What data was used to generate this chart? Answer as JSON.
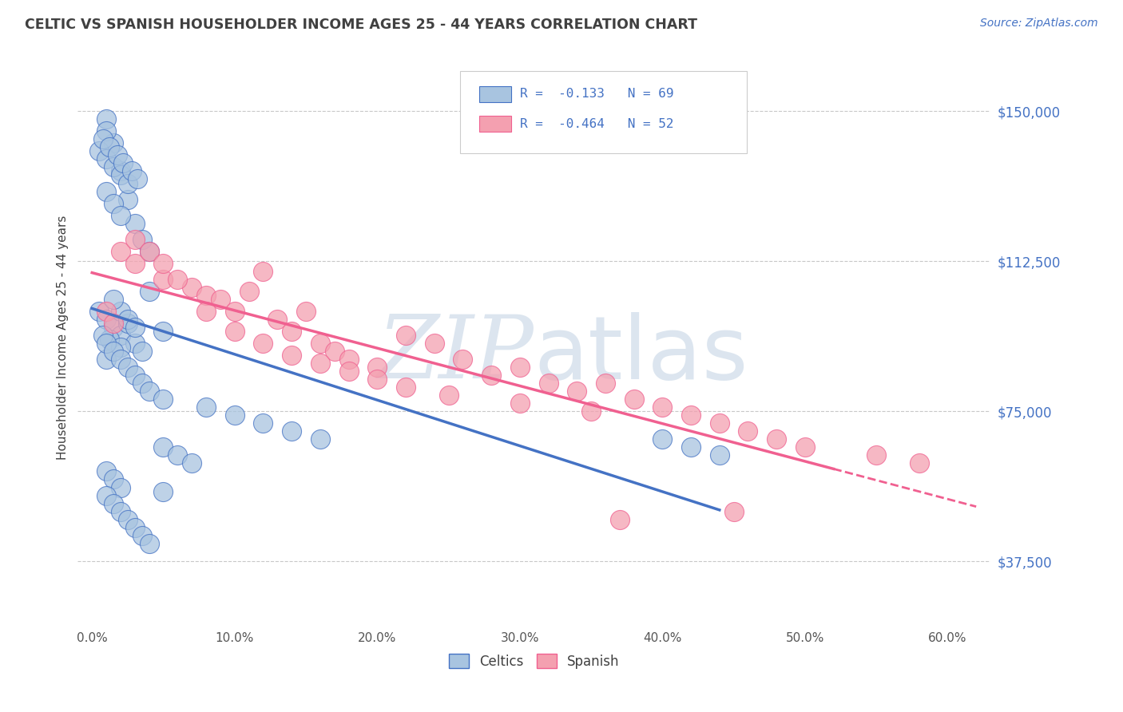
{
  "title": "CELTIC VS SPANISH HOUSEHOLDER INCOME AGES 25 - 44 YEARS CORRELATION CHART",
  "source": "Source: ZipAtlas.com",
  "xlabel_ticks": [
    "0.0%",
    "10.0%",
    "20.0%",
    "30.0%",
    "40.0%",
    "50.0%",
    "60.0%"
  ],
  "xlabel_vals": [
    0,
    10,
    20,
    30,
    40,
    50,
    60
  ],
  "ylabel_ticks": [
    "$37,500",
    "$75,000",
    "$112,500",
    "$150,000"
  ],
  "ylabel_vals": [
    37500,
    75000,
    112500,
    150000
  ],
  "ylim": [
    22000,
    165000
  ],
  "xlim": [
    -1,
    63
  ],
  "legend_r1": "R =  -0.133   N = 69",
  "legend_r2": "R =  -0.464   N = 52",
  "legend_label1": "Celtics",
  "legend_label2": "Spanish",
  "color_celtic": "#a8c4e0",
  "color_spanish": "#f4a0b0",
  "color_celtic_line": "#4472c4",
  "color_spanish_line": "#f06090",
  "color_title": "#404040",
  "color_source": "#4472c4",
  "color_grid": "#c8c8c8",
  "color_axis_tick": "#4472c4",
  "celtics_x": [
    1.0,
    2.0,
    2.5,
    1.5,
    3.0,
    3.5,
    4.0,
    1.0,
    1.5,
    2.0,
    0.5,
    1.0,
    1.5,
    2.0,
    2.5,
    1.0,
    0.8,
    1.2,
    1.8,
    2.2,
    2.8,
    3.2,
    0.5,
    1.0,
    1.5,
    2.0,
    3.0,
    4.0,
    5.0,
    1.2,
    2.0,
    2.5,
    3.5,
    1.0,
    2.0,
    1.5,
    2.5,
    3.0,
    0.8,
    1.0,
    1.5,
    2.0,
    2.5,
    3.0,
    3.5,
    4.0,
    5.0,
    8.0,
    10.0,
    12.0,
    14.0,
    16.0,
    5.0,
    6.0,
    7.0,
    40.0,
    42.0,
    44.0,
    1.0,
    1.5,
    2.0,
    1.0,
    1.5,
    2.0,
    2.5,
    3.0,
    3.5,
    4.0,
    5.0
  ],
  "celtics_y": [
    148000,
    135000,
    128000,
    142000,
    122000,
    118000,
    115000,
    130000,
    127000,
    124000,
    140000,
    138000,
    136000,
    134000,
    132000,
    145000,
    143000,
    141000,
    139000,
    137000,
    135000,
    133000,
    100000,
    98000,
    96000,
    94000,
    92000,
    105000,
    95000,
    93000,
    91000,
    97000,
    90000,
    88000,
    100000,
    103000,
    98000,
    96000,
    94000,
    92000,
    90000,
    88000,
    86000,
    84000,
    82000,
    80000,
    78000,
    76000,
    74000,
    72000,
    70000,
    68000,
    66000,
    64000,
    62000,
    68000,
    66000,
    64000,
    60000,
    58000,
    56000,
    54000,
    52000,
    50000,
    48000,
    46000,
    44000,
    42000,
    55000
  ],
  "spanish_x": [
    1.0,
    1.5,
    2.0,
    3.0,
    5.0,
    7.0,
    8.0,
    9.0,
    10.0,
    11.0,
    12.0,
    13.0,
    14.0,
    15.0,
    16.0,
    17.0,
    18.0,
    20.0,
    22.0,
    24.0,
    26.0,
    28.0,
    30.0,
    32.0,
    34.0,
    36.0,
    38.0,
    40.0,
    42.0,
    44.0,
    46.0,
    48.0,
    50.0,
    55.0,
    58.0,
    3.0,
    4.0,
    5.0,
    6.0,
    8.0,
    10.0,
    12.0,
    14.0,
    16.0,
    18.0,
    20.0,
    22.0,
    25.0,
    30.0,
    35.0,
    45.0,
    37.0
  ],
  "spanish_y": [
    100000,
    97000,
    115000,
    112000,
    108000,
    106000,
    104000,
    103000,
    100000,
    105000,
    110000,
    98000,
    95000,
    100000,
    92000,
    90000,
    88000,
    86000,
    94000,
    92000,
    88000,
    84000,
    86000,
    82000,
    80000,
    82000,
    78000,
    76000,
    74000,
    72000,
    70000,
    68000,
    66000,
    64000,
    62000,
    118000,
    115000,
    112000,
    108000,
    100000,
    95000,
    92000,
    89000,
    87000,
    85000,
    83000,
    81000,
    79000,
    77000,
    75000,
    50000,
    48000
  ],
  "watermark_zip_color": "#c5d5e5",
  "watermark_atlas_color": "#c5d5e5"
}
